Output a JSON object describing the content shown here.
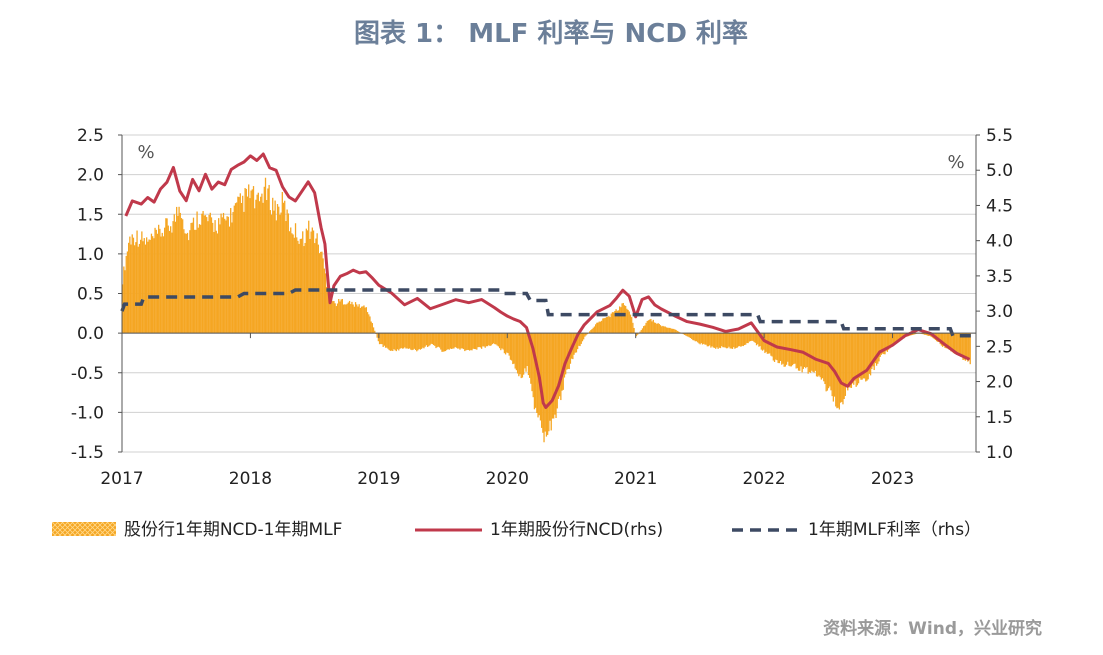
{
  "title": "图表 1： MLF 利率与 NCD 利率",
  "source": "资料来源：Wind，兴业研究",
  "chart_data": {
    "type": "bar+line",
    "title": "图表 1： MLF 利率与 NCD 利率",
    "left_axis": {
      "unit_label": "%",
      "min": -1.5,
      "max": 2.5,
      "ticks": [
        {
          "v": 2.5,
          "label": "2.5"
        },
        {
          "v": 2.0,
          "label": "2.0"
        },
        {
          "v": 1.5,
          "label": "1.5"
        },
        {
          "v": 1.0,
          "label": "1.0"
        },
        {
          "v": 0.5,
          "label": "0.5"
        },
        {
          "v": 0.0,
          "label": "0.0"
        },
        {
          "v": -0.5,
          "label": "-0.5"
        },
        {
          "v": -1.0,
          "label": "-1.0"
        },
        {
          "v": -1.5,
          "label": "-1.5"
        }
      ]
    },
    "right_axis": {
      "unit_label": "%",
      "min": 1.0,
      "max": 5.5,
      "ticks": [
        {
          "v": 5.5,
          "label": "5.5"
        },
        {
          "v": 5.0,
          "label": "5.0"
        },
        {
          "v": 4.5,
          "label": "4.5"
        },
        {
          "v": 4.0,
          "label": "4.0"
        },
        {
          "v": 3.5,
          "label": "3.5"
        },
        {
          "v": 3.0,
          "label": "3.0"
        },
        {
          "v": 2.5,
          "label": "2.5"
        },
        {
          "v": 2.0,
          "label": "2.0"
        },
        {
          "v": 1.5,
          "label": "1.5"
        },
        {
          "v": 1.0,
          "label": "1.0"
        }
      ]
    },
    "x_axis": {
      "min": 2017.0,
      "max": 2023.65,
      "ticks": [
        {
          "v": 2017,
          "label": "2017"
        },
        {
          "v": 2018,
          "label": "2018"
        },
        {
          "v": 2019,
          "label": "2019"
        },
        {
          "v": 2020,
          "label": "2020"
        },
        {
          "v": 2021,
          "label": "2021"
        },
        {
          "v": 2022,
          "label": "2022"
        },
        {
          "v": 2023,
          "label": "2023"
        }
      ]
    },
    "colors": {
      "spread": "#f5a623",
      "ncd": "#c0394b",
      "mlf": "#3d4a63",
      "grid": "#d0d0d0",
      "title": "#6b7f99",
      "source": "#9a9a9a"
    },
    "series": [
      {
        "name": "股份行1年期NCD-1年期MLF",
        "kind": "bar",
        "axis": "left",
        "points": [
          [
            2017.0,
            0.75
          ],
          [
            2017.05,
            1.3
          ],
          [
            2017.1,
            1.35
          ],
          [
            2017.2,
            1.25
          ],
          [
            2017.3,
            1.4
          ],
          [
            2017.4,
            1.55
          ],
          [
            2017.45,
            1.8
          ],
          [
            2017.5,
            1.35
          ],
          [
            2017.6,
            1.65
          ],
          [
            2017.7,
            1.5
          ],
          [
            2017.8,
            1.55
          ],
          [
            2017.9,
            1.75
          ],
          [
            2018.0,
            1.95
          ],
          [
            2018.05,
            1.75
          ],
          [
            2018.1,
            2.0
          ],
          [
            2018.15,
            1.85
          ],
          [
            2018.2,
            1.7
          ],
          [
            2018.25,
            1.8
          ],
          [
            2018.3,
            1.5
          ],
          [
            2018.35,
            1.4
          ],
          [
            2018.4,
            1.3
          ],
          [
            2018.45,
            1.45
          ],
          [
            2018.5,
            1.35
          ],
          [
            2018.55,
            1.1
          ],
          [
            2018.6,
            0.6
          ],
          [
            2018.65,
            0.4
          ],
          [
            2018.7,
            0.45
          ],
          [
            2018.8,
            0.4
          ],
          [
            2018.9,
            0.35
          ],
          [
            2019.0,
            -0.15
          ],
          [
            2019.1,
            -0.25
          ],
          [
            2019.2,
            -0.2
          ],
          [
            2019.3,
            -0.25
          ],
          [
            2019.4,
            -0.15
          ],
          [
            2019.5,
            -0.25
          ],
          [
            2019.6,
            -0.2
          ],
          [
            2019.7,
            -0.25
          ],
          [
            2019.8,
            -0.2
          ],
          [
            2019.9,
            -0.15
          ],
          [
            2020.0,
            -0.3
          ],
          [
            2020.1,
            -0.6
          ],
          [
            2020.15,
            -0.5
          ],
          [
            2020.2,
            -0.95
          ],
          [
            2020.25,
            -1.25
          ],
          [
            2020.28,
            -1.5
          ],
          [
            2020.3,
            -1.4
          ],
          [
            2020.35,
            -1.25
          ],
          [
            2020.4,
            -0.95
          ],
          [
            2020.45,
            -0.6
          ],
          [
            2020.5,
            -0.35
          ],
          [
            2020.6,
            -0.05
          ],
          [
            2020.7,
            0.15
          ],
          [
            2020.8,
            0.25
          ],
          [
            2020.9,
            0.4
          ],
          [
            2020.95,
            0.3
          ],
          [
            2021.0,
            -0.05
          ],
          [
            2021.1,
            0.2
          ],
          [
            2021.2,
            0.1
          ],
          [
            2021.3,
            0.05
          ],
          [
            2021.4,
            -0.05
          ],
          [
            2021.5,
            -0.15
          ],
          [
            2021.6,
            -0.2
          ],
          [
            2021.7,
            -0.2
          ],
          [
            2021.8,
            -0.2
          ],
          [
            2021.9,
            -0.1
          ],
          [
            2022.0,
            -0.25
          ],
          [
            2022.1,
            -0.4
          ],
          [
            2022.2,
            -0.45
          ],
          [
            2022.3,
            -0.5
          ],
          [
            2022.4,
            -0.55
          ],
          [
            2022.5,
            -0.8
          ],
          [
            2022.55,
            -0.95
          ],
          [
            2022.6,
            -1.0
          ],
          [
            2022.65,
            -0.75
          ],
          [
            2022.7,
            -0.7
          ],
          [
            2022.8,
            -0.6
          ],
          [
            2022.9,
            -0.35
          ],
          [
            2023.0,
            -0.15
          ],
          [
            2023.1,
            -0.05
          ],
          [
            2023.2,
            0.0
          ],
          [
            2023.3,
            -0.05
          ],
          [
            2023.4,
            -0.2
          ],
          [
            2023.5,
            -0.3
          ],
          [
            2023.6,
            -0.4
          ]
        ]
      },
      {
        "name": "1年期股份行NCD(rhs)",
        "kind": "line",
        "axis": "right",
        "points": [
          [
            2017.03,
            4.35
          ],
          [
            2017.08,
            4.55
          ],
          [
            2017.15,
            4.5
          ],
          [
            2017.2,
            4.6
          ],
          [
            2017.25,
            4.55
          ],
          [
            2017.3,
            4.75
          ],
          [
            2017.35,
            4.85
          ],
          [
            2017.4,
            5.05
          ],
          [
            2017.45,
            4.7
          ],
          [
            2017.5,
            4.55
          ],
          [
            2017.55,
            4.85
          ],
          [
            2017.6,
            4.7
          ],
          [
            2017.65,
            4.95
          ],
          [
            2017.7,
            4.75
          ],
          [
            2017.75,
            4.85
          ],
          [
            2017.8,
            4.8
          ],
          [
            2017.85,
            5.0
          ],
          [
            2017.9,
            5.05
          ],
          [
            2017.95,
            5.1
          ],
          [
            2018.0,
            5.2
          ],
          [
            2018.05,
            5.15
          ],
          [
            2018.1,
            5.25
          ],
          [
            2018.15,
            5.05
          ],
          [
            2018.2,
            5.0
          ],
          [
            2018.25,
            4.75
          ],
          [
            2018.3,
            4.6
          ],
          [
            2018.35,
            4.55
          ],
          [
            2018.4,
            4.7
          ],
          [
            2018.45,
            4.85
          ],
          [
            2018.5,
            4.7
          ],
          [
            2018.55,
            4.2
          ],
          [
            2018.58,
            3.95
          ],
          [
            2018.6,
            3.5
          ],
          [
            2018.62,
            3.1
          ],
          [
            2018.65,
            3.35
          ],
          [
            2018.7,
            3.5
          ],
          [
            2018.75,
            3.55
          ],
          [
            2018.8,
            3.6
          ],
          [
            2018.85,
            3.55
          ],
          [
            2018.9,
            3.55
          ],
          [
            2018.95,
            3.45
          ],
          [
            2019.0,
            3.35
          ],
          [
            2019.1,
            3.25
          ],
          [
            2019.2,
            3.1
          ],
          [
            2019.3,
            3.2
          ],
          [
            2019.4,
            3.05
          ],
          [
            2019.5,
            3.1
          ],
          [
            2019.6,
            3.15
          ],
          [
            2019.7,
            3.1
          ],
          [
            2019.8,
            3.15
          ],
          [
            2019.9,
            3.05
          ],
          [
            2019.95,
            3.0
          ],
          [
            2020.0,
            2.95
          ],
          [
            2020.05,
            2.9
          ],
          [
            2020.1,
            2.85
          ],
          [
            2020.15,
            2.75
          ],
          [
            2020.2,
            2.45
          ],
          [
            2020.25,
            2.05
          ],
          [
            2020.28,
            1.7
          ],
          [
            2020.3,
            1.65
          ],
          [
            2020.35,
            1.75
          ],
          [
            2020.4,
            1.95
          ],
          [
            2020.45,
            2.25
          ],
          [
            2020.5,
            2.45
          ],
          [
            2020.55,
            2.65
          ],
          [
            2020.6,
            2.8
          ],
          [
            2020.7,
            3.0
          ],
          [
            2020.8,
            3.1
          ],
          [
            2020.85,
            3.2
          ],
          [
            2020.9,
            3.3
          ],
          [
            2020.95,
            3.2
          ],
          [
            2021.0,
            2.9
          ],
          [
            2021.05,
            3.15
          ],
          [
            2021.1,
            3.2
          ],
          [
            2021.15,
            3.1
          ],
          [
            2021.2,
            3.05
          ],
          [
            2021.3,
            2.95
          ],
          [
            2021.4,
            2.85
          ],
          [
            2021.5,
            2.8
          ],
          [
            2021.6,
            2.75
          ],
          [
            2021.7,
            2.7
          ],
          [
            2021.8,
            2.75
          ],
          [
            2021.9,
            2.85
          ],
          [
            2022.0,
            2.6
          ],
          [
            2022.1,
            2.5
          ],
          [
            2022.2,
            2.45
          ],
          [
            2022.3,
            2.4
          ],
          [
            2022.4,
            2.3
          ],
          [
            2022.5,
            2.25
          ],
          [
            2022.55,
            2.15
          ],
          [
            2022.6,
            2.0
          ],
          [
            2022.65,
            1.95
          ],
          [
            2022.7,
            2.05
          ],
          [
            2022.8,
            2.15
          ],
          [
            2022.9,
            2.4
          ],
          [
            2023.0,
            2.5
          ],
          [
            2023.1,
            2.65
          ],
          [
            2023.2,
            2.75
          ],
          [
            2023.3,
            2.7
          ],
          [
            2023.4,
            2.55
          ],
          [
            2023.5,
            2.4
          ],
          [
            2023.6,
            2.3
          ]
        ]
      },
      {
        "name": "1年期MLF利率（rhs）",
        "kind": "step-dashed",
        "axis": "right",
        "points": [
          [
            2017.0,
            3.0
          ],
          [
            2017.02,
            3.1
          ],
          [
            2017.15,
            3.1
          ],
          [
            2017.17,
            3.2
          ],
          [
            2017.9,
            3.2
          ],
          [
            2017.95,
            3.25
          ],
          [
            2018.3,
            3.25
          ],
          [
            2018.35,
            3.3
          ],
          [
            2019.95,
            3.3
          ],
          [
            2019.97,
            3.25
          ],
          [
            2020.15,
            3.25
          ],
          [
            2020.18,
            3.15
          ],
          [
            2020.3,
            3.15
          ],
          [
            2020.32,
            2.95
          ],
          [
            2021.95,
            2.95
          ],
          [
            2021.97,
            2.85
          ],
          [
            2022.6,
            2.85
          ],
          [
            2022.62,
            2.75
          ],
          [
            2023.45,
            2.75
          ],
          [
            2023.47,
            2.65
          ],
          [
            2023.65,
            2.65
          ]
        ]
      }
    ]
  },
  "legend": {
    "spread": "股份行1年期NCD-1年期MLF",
    "ncd": "1年期股份行NCD(rhs)",
    "mlf": "1年期MLF利率（rhs）"
  }
}
